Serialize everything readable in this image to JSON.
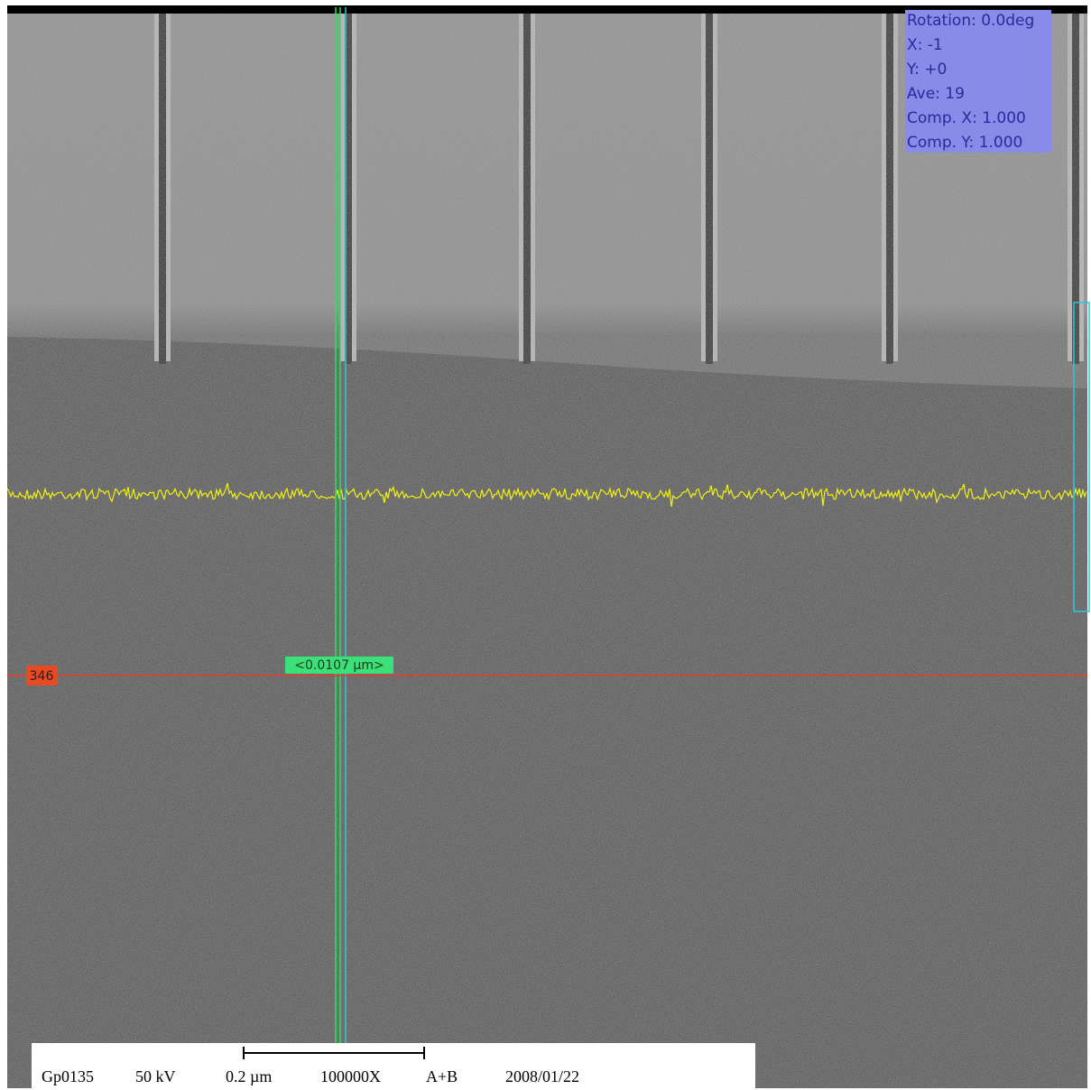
{
  "overlay_info": {
    "lines": [
      "Rotation: 0.0deg",
      "X: -1",
      "Y: +0",
      "Ave: 19",
      "Comp. X: 1.000",
      "Comp. Y: 1.000"
    ]
  },
  "cursor": {
    "row_label": "346",
    "measure_label": "<0.0107 μm>"
  },
  "footer": {
    "sample": "Gp0135",
    "voltage": "50 kV",
    "scale": "0.2 µm",
    "magnification": "100000X",
    "detector": "A+B",
    "date": "2008/01/22"
  }
}
